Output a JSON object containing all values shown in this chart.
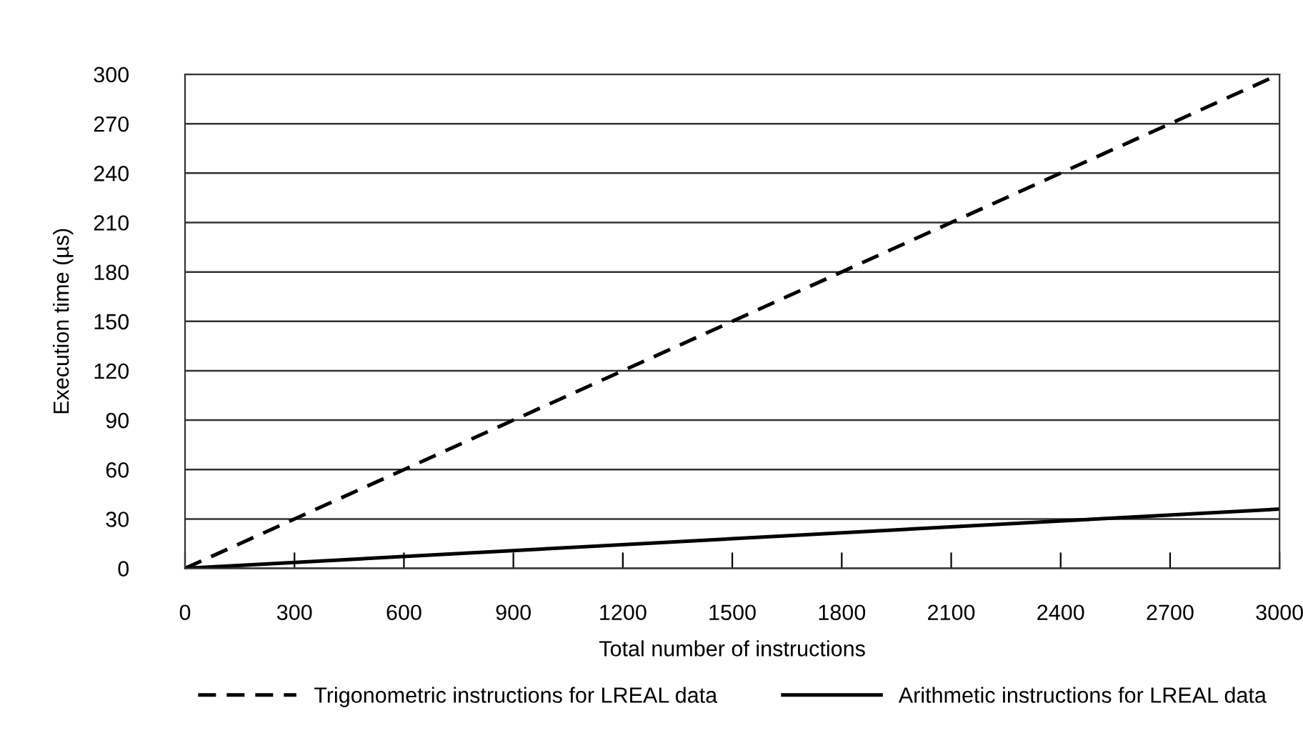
{
  "chart_data": {
    "type": "line",
    "xlabel": "Total number of instructions",
    "ylabel": "Execution time (µs)",
    "xlim": [
      0,
      3000
    ],
    "xticks": [
      0,
      300,
      600,
      900,
      1200,
      1500,
      1800,
      2100,
      2400,
      2700,
      3000
    ],
    "ylim": [
      0,
      300
    ],
    "yticks": [
      0,
      30,
      60,
      90,
      120,
      150,
      180,
      210,
      240,
      270,
      300
    ],
    "x": [
      0,
      3000
    ],
    "grid": "y",
    "legend": "bottom",
    "marker": "none",
    "series": [
      {
        "name": "Trigonometric instructions for LREAL data",
        "color": "#000000",
        "line_style": "dashed",
        "values": [
          0,
          300
        ]
      },
      {
        "name": "Arithmetic instructions for LREAL data",
        "color": "#000000",
        "line_style": "solid",
        "values": [
          0,
          36
        ]
      }
    ]
  }
}
